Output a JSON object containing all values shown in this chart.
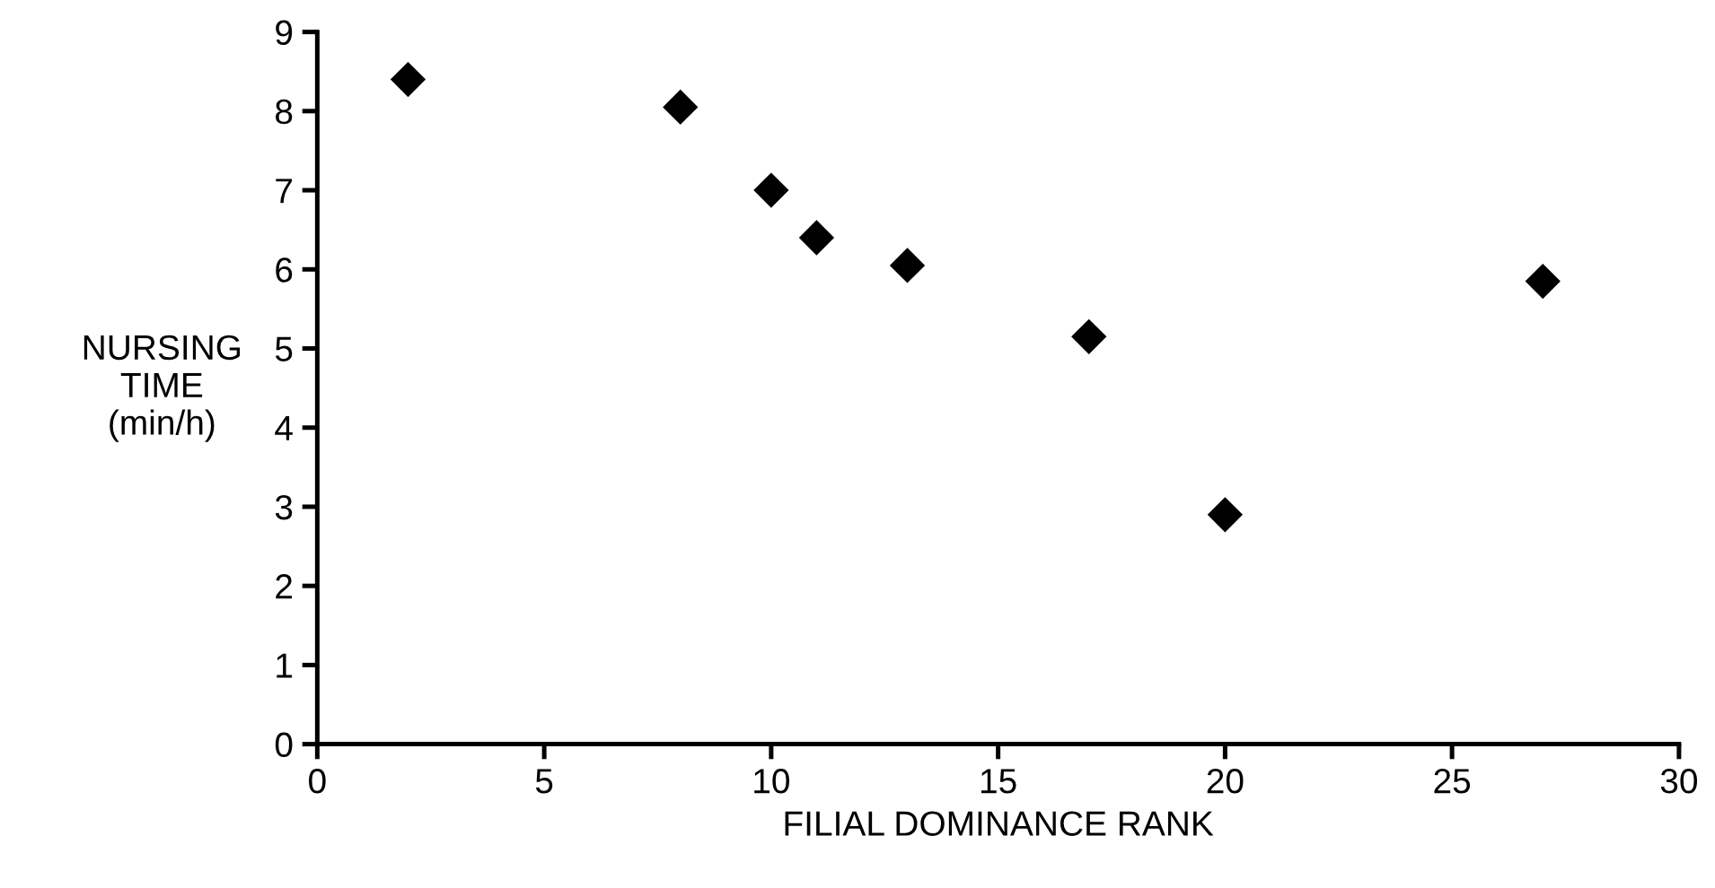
{
  "chart_data": {
    "type": "scatter",
    "xlabel": "FILIAL DOMINANCE RANK",
    "ylabel": "NURSING\nTIME\n(min/h)",
    "x": [
      2,
      8,
      10,
      11,
      13,
      17,
      20,
      27
    ],
    "values": [
      8.4,
      8.05,
      7.0,
      6.4,
      6.05,
      5.15,
      2.9,
      5.85
    ],
    "color": "#000000",
    "marker": "diamond",
    "xlim": [
      0,
      30
    ],
    "xticks": [
      0,
      5,
      10,
      15,
      20,
      25,
      30
    ],
    "ylim": [
      0,
      9
    ],
    "yticks": [
      0,
      1,
      2,
      3,
      4,
      5,
      6,
      7,
      8,
      9
    ],
    "grid": false,
    "legend": false
  }
}
